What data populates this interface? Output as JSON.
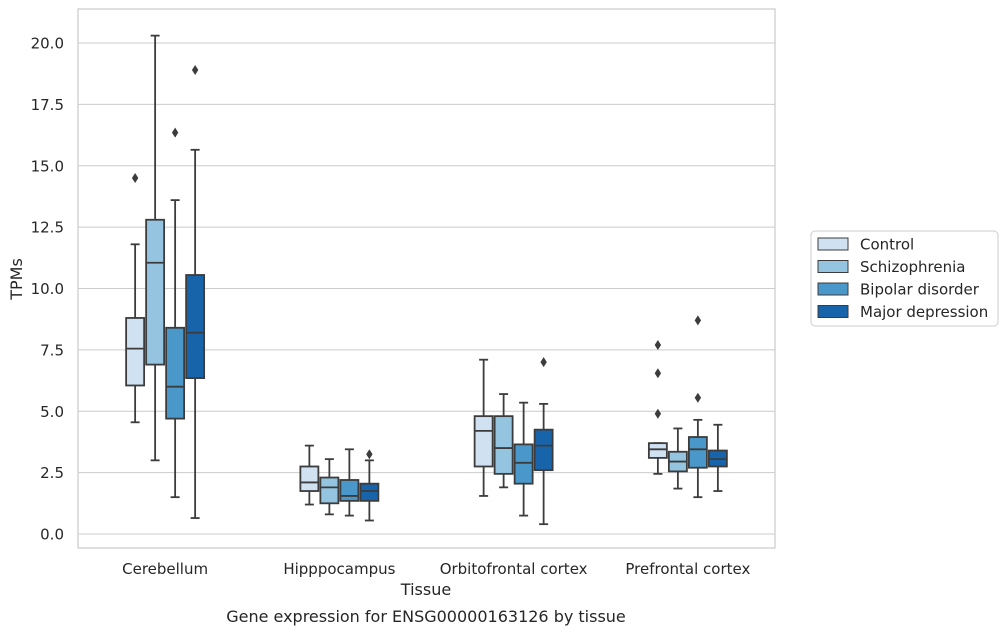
{
  "chart_data": {
    "type": "box",
    "title": "",
    "caption": "Gene expression for ENSG00000163126 by tissue",
    "xlabel": "Tissue",
    "ylabel": "TPMs",
    "ylim": [
      -0.5,
      21.3
    ],
    "yticks": [
      "0.0",
      "2.5",
      "5.0",
      "7.5",
      "10.0",
      "12.5",
      "15.0",
      "17.5",
      "20.0"
    ],
    "grid": true,
    "legend_position": "right",
    "categories": [
      "Cerebellum",
      "Hipppocampus",
      "Orbitofrontal cortex",
      "Prefrontal cortex"
    ],
    "series": [
      {
        "name": "Control",
        "color": "#d0e1f2",
        "boxes": [
          {
            "whislo": 4.55,
            "q1": 6.05,
            "med": 7.55,
            "q3": 8.8,
            "whishi": 11.8,
            "fliers": [
              14.5
            ]
          },
          {
            "whislo": 1.2,
            "q1": 1.75,
            "med": 2.1,
            "q3": 2.75,
            "whishi": 3.6,
            "fliers": []
          },
          {
            "whislo": 1.55,
            "q1": 2.75,
            "med": 4.2,
            "q3": 4.8,
            "whishi": 7.1,
            "fliers": []
          },
          {
            "whislo": 2.45,
            "q1": 3.1,
            "med": 3.45,
            "q3": 3.7,
            "whishi": 3.7,
            "fliers": [
              4.9,
              6.55,
              7.7
            ]
          }
        ]
      },
      {
        "name": "Schizophrenia",
        "color": "#94c4df",
        "boxes": [
          {
            "whislo": 3.0,
            "q1": 6.9,
            "med": 11.05,
            "q3": 12.8,
            "whishi": 20.3,
            "fliers": []
          },
          {
            "whislo": 0.8,
            "q1": 1.25,
            "med": 1.9,
            "q3": 2.3,
            "whishi": 3.05,
            "fliers": []
          },
          {
            "whislo": 1.9,
            "q1": 2.45,
            "med": 3.5,
            "q3": 4.8,
            "whishi": 5.7,
            "fliers": []
          },
          {
            "whislo": 1.85,
            "q1": 2.55,
            "med": 2.95,
            "q3": 3.35,
            "whishi": 4.3,
            "fliers": []
          }
        ]
      },
      {
        "name": "Bipolar disorder",
        "color": "#4a98c9",
        "boxes": [
          {
            "whislo": 1.5,
            "q1": 4.7,
            "med": 6.0,
            "q3": 8.4,
            "whishi": 13.6,
            "fliers": [
              16.35
            ]
          },
          {
            "whislo": 0.75,
            "q1": 1.35,
            "med": 1.55,
            "q3": 2.2,
            "whishi": 3.45,
            "fliers": []
          },
          {
            "whislo": 0.75,
            "q1": 2.05,
            "med": 2.9,
            "q3": 3.65,
            "whishi": 5.35,
            "fliers": []
          },
          {
            "whislo": 1.5,
            "q1": 2.7,
            "med": 3.45,
            "q3": 3.95,
            "whishi": 4.65,
            "fliers": [
              5.55,
              8.7
            ]
          }
        ]
      },
      {
        "name": "Major depression",
        "color": "#1764ab",
        "boxes": [
          {
            "whislo": 0.65,
            "q1": 6.35,
            "med": 8.2,
            "q3": 10.55,
            "whishi": 15.65,
            "fliers": [
              18.9
            ]
          },
          {
            "whislo": 0.55,
            "q1": 1.35,
            "med": 1.75,
            "q3": 2.05,
            "whishi": 3.0,
            "fliers": [
              3.25
            ]
          },
          {
            "whislo": 0.4,
            "q1": 2.6,
            "med": 3.6,
            "q3": 4.25,
            "whishi": 5.3,
            "fliers": [
              7.0
            ]
          },
          {
            "whislo": 1.75,
            "q1": 2.75,
            "med": 3.05,
            "q3": 3.4,
            "whishi": 4.45,
            "fliers": []
          }
        ]
      }
    ]
  }
}
